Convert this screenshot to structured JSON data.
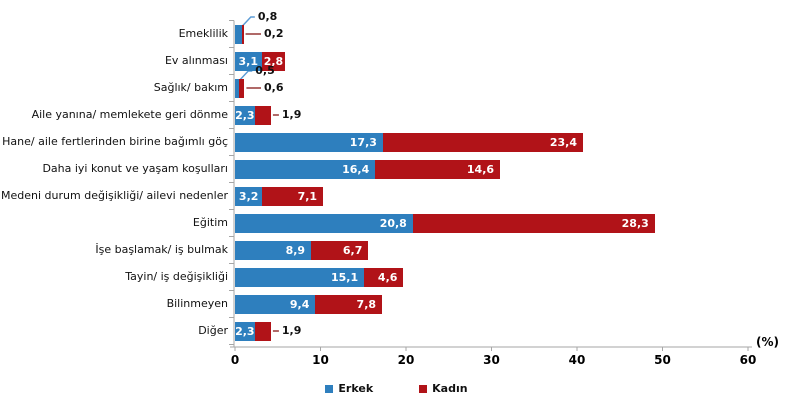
{
  "chart_data": {
    "type": "bar",
    "variant": "horizontal-stacked",
    "title": "",
    "categories": [
      "Emeklilik",
      "Ev alınması",
      "Sağlık/ bakım",
      "Aile yanına/ memlekete geri dönme",
      "Hane/ aile fertlerinden birine bağımlı göç",
      "Daha iyi konut ve yaşam koşulları",
      "Medeni durum değişikliği/ ailevi nedenler",
      "Eğitim",
      "İşe başlamak/ iş bulmak",
      "Tayin/ iş değişikliği",
      "Bilinmeyen",
      "Diğer"
    ],
    "series": [
      {
        "name": "Erkek",
        "color": "#2E7FBE",
        "callout_line_color": "#5B9BD5",
        "values": [
          0.8,
          3.1,
          0.5,
          2.3,
          17.3,
          16.4,
          3.2,
          20.8,
          8.9,
          15.1,
          9.4,
          2.3
        ],
        "labels": [
          "0,8",
          "3,1",
          "0,5",
          "2,3",
          "17,3",
          "16,4",
          "3,2",
          "20,8",
          "8,9",
          "15,1",
          "9,4",
          "2,3"
        ]
      },
      {
        "name": "Kadın",
        "color": "#B11318",
        "callout_line_color": "#953735",
        "values": [
          0.2,
          2.8,
          0.6,
          1.9,
          23.4,
          14.6,
          7.1,
          28.3,
          6.7,
          4.6,
          7.8,
          1.9
        ],
        "labels": [
          "0,2",
          "2,8",
          "0,6",
          "1,9",
          "23,4",
          "14,6",
          "7,1",
          "28,3",
          "6,7",
          "4,6",
          "7,8",
          "1,9"
        ]
      }
    ],
    "callouts": [
      {
        "row": 0,
        "series": 0
      },
      {
        "row": 0,
        "series": 1
      },
      {
        "row": 2,
        "series": 0
      },
      {
        "row": 2,
        "series": 1
      },
      {
        "row": 3,
        "series": 1
      },
      {
        "row": 11,
        "series": 1
      }
    ],
    "axis": {
      "unit_label": "(%)",
      "tick_labels": [
        "0",
        "10",
        "20",
        "30",
        "40",
        "50",
        "60"
      ],
      "tick_values": [
        0,
        10,
        20,
        30,
        40,
        50,
        60
      ],
      "xlim": [
        0,
        60
      ],
      "axis_color": "#A6A6A6",
      "grid": false
    },
    "legend_position": "bottom-center"
  }
}
